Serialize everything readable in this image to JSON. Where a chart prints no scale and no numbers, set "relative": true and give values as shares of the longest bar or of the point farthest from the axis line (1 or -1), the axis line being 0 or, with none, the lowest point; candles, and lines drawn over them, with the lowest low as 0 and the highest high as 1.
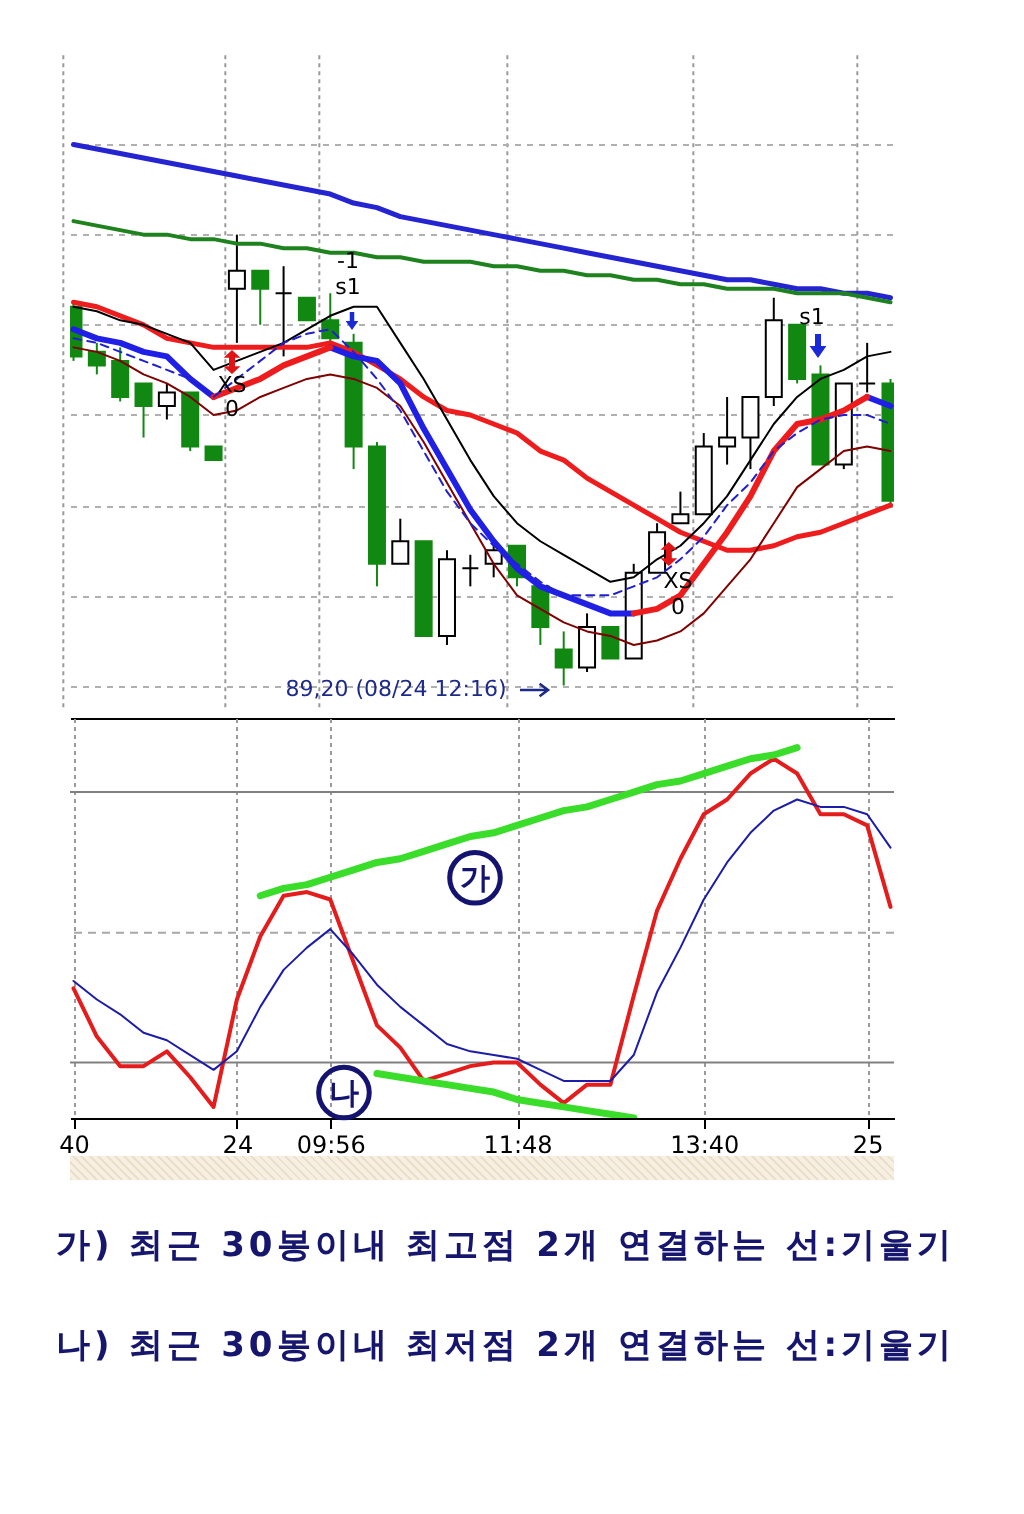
{
  "chart_data": [
    {
      "type": "candlestick",
      "relative": true,
      "grid": true,
      "categories": [
        null,
        null,
        null,
        null,
        null,
        null,
        null,
        null,
        null,
        null,
        null,
        null,
        null,
        null,
        null,
        null,
        null,
        null,
        null,
        null,
        null,
        null,
        null,
        null,
        null,
        null,
        null,
        null,
        null,
        null,
        null,
        null,
        null,
        null,
        null,
        null
      ],
      "ohlc": [
        [
          0.84,
          0.85,
          0.72,
          0.73
        ],
        [
          0.74,
          0.76,
          0.69,
          0.71
        ],
        [
          0.72,
          0.75,
          0.63,
          0.64
        ],
        [
          0.67,
          0.67,
          0.55,
          0.62
        ],
        [
          0.62,
          0.67,
          0.59,
          0.65
        ],
        [
          0.65,
          0.65,
          0.52,
          0.53
        ],
        [
          0.53,
          0.53,
          0.5,
          0.5
        ],
        [
          0.88,
          1,
          0.76,
          0.92
        ],
        [
          0.92,
          0.92,
          0.8,
          0.88
        ],
        [
          0.87,
          0.93,
          0.73,
          0.87
        ],
        [
          0.86,
          0.86,
          0.81,
          0.81
        ],
        [
          0.81,
          0.87,
          0.76,
          0.77
        ],
        [
          0.76,
          0.78,
          0.48,
          0.53
        ],
        [
          0.53,
          0.54,
          0.22,
          0.27
        ],
        [
          0.27,
          0.37,
          0.27,
          0.32
        ],
        [
          0.32,
          0.32,
          0.11,
          0.11
        ],
        [
          0.11,
          0.3,
          0.09,
          0.28
        ],
        [
          0.26,
          0.29,
          0.22,
          0.26
        ],
        [
          0.27,
          0.31,
          0.24,
          0.3
        ],
        [
          0.31,
          0.31,
          0.22,
          0.24
        ],
        [
          0.22,
          0.22,
          0.09,
          0.13
        ],
        [
          0.08,
          0.12,
          0,
          0.04
        ],
        [
          0.04,
          0.16,
          0.03,
          0.13
        ],
        [
          0.13,
          0.13,
          0.06,
          0.06
        ],
        [
          0.06,
          0.27,
          0.06,
          0.25
        ],
        [
          0.25,
          0.36,
          0.25,
          0.34
        ],
        [
          0.36,
          0.43,
          0.36,
          0.38
        ],
        [
          0.38,
          0.56,
          0.38,
          0.53
        ],
        [
          0.53,
          0.64,
          0.49,
          0.55
        ],
        [
          0.55,
          0.64,
          0.48,
          0.64
        ],
        [
          0.64,
          0.86,
          0.62,
          0.81
        ],
        [
          0.8,
          0.8,
          0.67,
          0.68
        ],
        [
          0.69,
          0.71,
          0.49,
          0.49
        ],
        [
          0.49,
          0.67,
          0.48,
          0.67
        ],
        [
          0.67,
          0.76,
          0.65,
          0.67
        ],
        [
          0.67,
          0.68,
          0.4,
          0.41
        ]
      ],
      "colors": [
        "#118811",
        "#118811",
        "#118811",
        "#118811",
        "#ffffff",
        "#118811",
        "#118811",
        "#ffffff",
        "#118811",
        "#000000",
        "#118811",
        "#118811",
        "#118811",
        "#118811",
        "#ffffff",
        "#118811",
        "#ffffff",
        "#000000",
        "#ffffff",
        "#118811",
        "#118811",
        "#118811",
        "#ffffff",
        "#118811",
        "#ffffff",
        "#ffffff",
        "#ffffff",
        "#ffffff",
        "#ffffff",
        "#ffffff",
        "#ffffff",
        "#118811",
        "#118811",
        "#ffffff",
        "#000000",
        "#118811"
      ],
      "series": [
        {
          "type": "line",
          "color": "#2424d0",
          "values": [
            1.2,
            1.19,
            1.18,
            1.17,
            1.16,
            1.15,
            1.14,
            1.13,
            1.12,
            1.11,
            1.1,
            1.09,
            1.07,
            1.06,
            1.04,
            1.03,
            1.02,
            1.01,
            1.0,
            0.99,
            0.98,
            0.97,
            0.96,
            0.95,
            0.94,
            0.93,
            0.92,
            0.91,
            0.9,
            0.9,
            0.89,
            0.88,
            0.88,
            0.87,
            0.87,
            0.86
          ]
        },
        {
          "type": "line",
          "color": "#1e821e",
          "values": [
            1.03,
            1.02,
            1.01,
            1.0,
            1.0,
            0.99,
            0.99,
            0.98,
            0.98,
            0.97,
            0.97,
            0.96,
            0.96,
            0.95,
            0.95,
            0.94,
            0.94,
            0.94,
            0.93,
            0.93,
            0.92,
            0.92,
            0.91,
            0.91,
            0.9,
            0.9,
            0.89,
            0.89,
            0.88,
            0.88,
            0.88,
            0.87,
            0.87,
            0.87,
            0.86,
            0.85
          ]
        },
        {
          "type": "line",
          "color": "#ee1c1c",
          "values": [
            0.85,
            0.84,
            0.82,
            0.8,
            0.77,
            0.76,
            0.75,
            0.75,
            0.75,
            0.75,
            0.75,
            0.76,
            0.74,
            0.71,
            0.68,
            0.64,
            0.61,
            0.6,
            0.58,
            0.56,
            0.52,
            0.5,
            0.46,
            0.43,
            0.4,
            0.37,
            0.34,
            0.32,
            0.3,
            0.3,
            0.31,
            0.33,
            0.34,
            0.36,
            0.38,
            0.4
          ]
        },
        {
          "type": "line",
          "color": "#1f1fe6",
          "values": [
            0.79,
            0.77,
            0.76,
            0.74,
            0.73,
            0.68,
            0.64,
            null,
            null,
            null,
            null,
            0.75,
            0.73,
            0.72,
            0.67,
            0.57,
            0.48,
            0.39,
            0.32,
            0.26,
            0.22,
            0.2,
            0.18,
            0.16,
            0.16,
            null,
            null,
            null,
            null,
            null,
            null,
            null,
            null,
            null,
            0.64,
            0.62
          ]
        },
        {
          "type": "line",
          "color": "#ee1c1c",
          "values": [
            null,
            null,
            null,
            null,
            null,
            null,
            0.64,
            0.66,
            0.68,
            0.71,
            0.73,
            0.75,
            null,
            null,
            null,
            null,
            null,
            null,
            null,
            null,
            null,
            null,
            null,
            null,
            0.16,
            0.17,
            0.2,
            0.27,
            0.34,
            0.42,
            0.52,
            0.58,
            0.59,
            0.61,
            0.64,
            null
          ]
        },
        {
          "type": "line",
          "color": "#000000",
          "values": [
            0.84,
            0.83,
            0.81,
            0.8,
            0.78,
            0.76,
            0.7,
            0.72,
            0.74,
            0.76,
            0.79,
            0.82,
            0.84,
            0.84,
            0.76,
            0.68,
            0.59,
            0.5,
            0.42,
            0.36,
            0.32,
            0.29,
            0.26,
            0.23,
            0.24,
            0.28,
            0.31,
            0.36,
            0.42,
            0.5,
            0.58,
            0.64,
            0.68,
            0.7,
            0.73,
            0.74
          ]
        },
        {
          "type": "line",
          "color": "#800000",
          "values": [
            0.75,
            0.74,
            0.72,
            0.69,
            0.67,
            0.64,
            0.6,
            0.61,
            0.64,
            0.66,
            0.68,
            0.69,
            0.68,
            0.66,
            0.62,
            0.54,
            0.45,
            0.36,
            0.27,
            0.2,
            0.17,
            0.14,
            0.12,
            0.11,
            0.09,
            0.1,
            0.12,
            0.16,
            0.22,
            0.28,
            0.36,
            0.44,
            0.48,
            0.52,
            0.53,
            0.52
          ]
        },
        {
          "type": "line",
          "color": "#2020d0",
          "line_style": "dashed",
          "values": [
            0.77,
            0.76,
            0.74,
            0.72,
            0.7,
            0.68,
            0.64,
            0.68,
            0.72,
            0.76,
            0.78,
            0.79,
            0.74,
            0.68,
            0.61,
            0.52,
            0.43,
            0.36,
            0.31,
            0.27,
            0.23,
            0.2,
            0.2,
            0.2,
            0.22,
            0.24,
            0.28,
            0.33,
            0.4,
            0.45,
            0.52,
            0.56,
            0.59,
            0.6,
            0.6,
            0.58
          ]
        }
      ],
      "annotations": [
        "-1",
        "s1",
        "XS",
        "0",
        "s1",
        "XS",
        "0",
        "89,20 (08/24 12:16)"
      ]
    },
    {
      "type": "line",
      "relative": true,
      "grid": "x",
      "categories": [
        "40",
        null,
        null,
        null,
        null,
        null,
        null,
        "24",
        null,
        null,
        null,
        "09:56",
        null,
        null,
        null,
        null,
        null,
        null,
        null,
        "11:48",
        null,
        null,
        null,
        null,
        null,
        null,
        null,
        "13:40",
        null,
        null,
        null,
        null,
        null,
        null,
        "25",
        null
      ],
      "series": [
        {
          "color": "#e41c1c",
          "values": [
            0.35,
            0.22,
            0.14,
            0.14,
            0.18,
            0.11,
            0.03,
            0.32,
            0.49,
            0.6,
            0.61,
            0.59,
            0.42,
            0.25,
            0.19,
            0.1,
            0.12,
            0.14,
            0.15,
            0.15,
            0.09,
            0.04,
            0.09,
            0.09,
            0.33,
            0.56,
            0.7,
            0.82,
            0.86,
            0.93,
            0.97,
            0.93,
            0.82,
            0.82,
            0.79,
            0.57
          ]
        },
        {
          "color": "#1c1caa",
          "values": [
            0.37,
            0.32,
            0.28,
            0.23,
            0.21,
            0.17,
            0.13,
            0.18,
            0.3,
            0.4,
            0.46,
            0.51,
            0.44,
            0.36,
            0.3,
            0.25,
            0.2,
            0.18,
            0.17,
            0.16,
            0.13,
            0.1,
            0.1,
            0.1,
            0.17,
            0.34,
            0.46,
            0.59,
            0.69,
            0.77,
            0.83,
            0.86,
            0.84,
            0.84,
            0.82,
            0.73
          ]
        },
        {
          "name": "가",
          "color": "#3ade2a",
          "values": [
            null,
            null,
            null,
            null,
            null,
            null,
            null,
            null,
            0.6,
            0.62,
            0.63,
            0.65,
            0.67,
            0.69,
            0.7,
            0.72,
            0.74,
            0.76,
            0.77,
            0.79,
            0.81,
            0.83,
            0.84,
            0.86,
            0.88,
            0.9,
            0.91,
            0.93,
            0.95,
            0.97,
            0.98,
            1.0,
            null,
            null,
            null,
            null
          ]
        },
        {
          "name": "나",
          "color": "#3ade2a",
          "values": [
            null,
            null,
            null,
            null,
            null,
            null,
            null,
            null,
            null,
            null,
            null,
            null,
            null,
            0.12,
            0.11,
            0.1,
            0.09,
            0.08,
            0.07,
            0.05,
            0.04,
            0.03,
            0.02,
            0.01,
            0,
            null,
            null,
            null,
            null,
            null,
            null,
            null,
            null,
            null,
            null,
            null
          ]
        }
      ],
      "ref_lines": [
        {
          "axis": "y",
          "value": 0.88,
          "color": "#808080"
        },
        {
          "axis": "y",
          "value": 0.5,
          "color": "#a8a8a8",
          "line_style": "dashed"
        },
        {
          "axis": "y",
          "value": 0.15,
          "color": "#808080"
        }
      ],
      "annotations": [
        "가) 최근 30봉이내 최고점 2개 연결하는 선:기울기",
        "나) 최근 30봉이내 최저점 2개 연결하는 선:기울기"
      ]
    }
  ]
}
